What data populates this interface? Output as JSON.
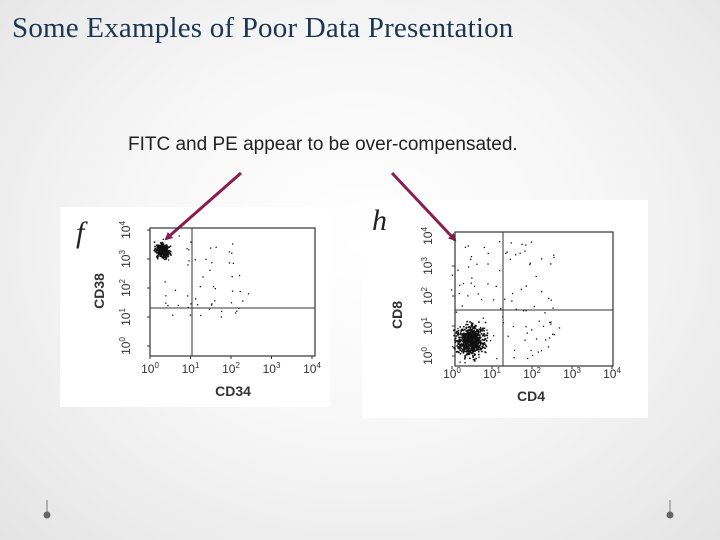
{
  "header": {
    "title": "Some Examples of Poor Data Presentation"
  },
  "caption": "FITC and PE appear to be over-compensated.",
  "panels": [
    {
      "label": "f",
      "x_axis": {
        "label": "CD34",
        "ticks": [
          {
            "base": "10",
            "exponent": "0"
          },
          {
            "base": "10",
            "exponent": "1"
          },
          {
            "base": "10",
            "exponent": "2"
          },
          {
            "base": "10",
            "exponent": "3"
          },
          {
            "base": "10",
            "exponent": "4"
          }
        ]
      },
      "y_axis": {
        "label": "CD38",
        "ticks": [
          {
            "base": "10",
            "exponent": "0"
          },
          {
            "base": "10",
            "exponent": "1"
          },
          {
            "base": "10",
            "exponent": "2"
          },
          {
            "base": "10",
            "exponent": "3"
          },
          {
            "base": "10",
            "exponent": "4"
          }
        ]
      }
    },
    {
      "label": "h",
      "x_axis": {
        "label": "CD4",
        "ticks": [
          {
            "base": "10",
            "exponent": "0"
          },
          {
            "base": "10",
            "exponent": "1"
          },
          {
            "base": "10",
            "exponent": "2"
          },
          {
            "base": "10",
            "exponent": "3"
          },
          {
            "base": "10",
            "exponent": "4"
          }
        ]
      },
      "y_axis": {
        "label": "CD8",
        "ticks": [
          {
            "base": "10",
            "exponent": "0"
          },
          {
            "base": "10",
            "exponent": "1"
          },
          {
            "base": "10",
            "exponent": "2"
          },
          {
            "base": "10",
            "exponent": "3"
          },
          {
            "base": "10",
            "exponent": "4"
          }
        ]
      }
    }
  ]
}
